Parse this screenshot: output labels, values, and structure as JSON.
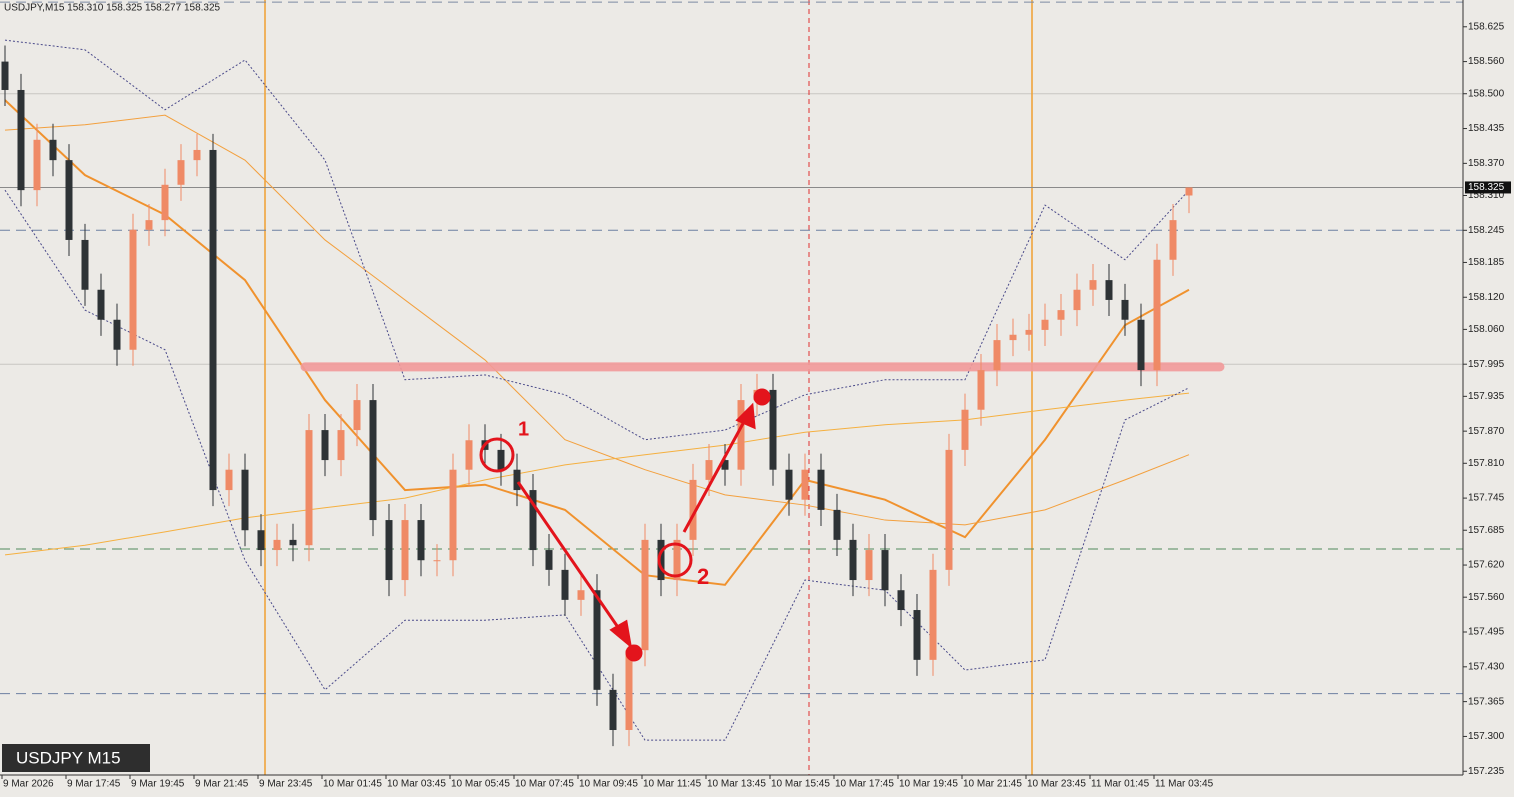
{
  "chart_data": {
    "type": "candlestick",
    "title": "USDJPY,M15  158.310 158.325 158.277 158.325",
    "symbol_label": "USDJPY M15",
    "ylim": [
      157.228,
      158.675
    ],
    "yticks": [
      158.625,
      {
        "value": 158.56,
        "label": "158.560"
      },
      {
        "value": 158.5,
        "label": "158.500"
      },
      158.435,
      {
        "value": 158.37,
        "label": "158.370"
      },
      {
        "value": 158.31,
        "label": "158.310"
      },
      158.245,
      158.185,
      {
        "value": 158.12,
        "label": "158.120"
      },
      {
        "value": 158.06,
        "label": "158.060"
      },
      157.995,
      157.935,
      {
        "value": 157.87,
        "label": "157.870"
      },
      {
        "value": 157.81,
        "label": "157.810"
      },
      157.745,
      157.685,
      {
        "value": 157.62,
        "label": "157.620"
      },
      {
        "value": 157.56,
        "label": "157.560"
      },
      157.495,
      {
        "value": 157.43,
        "label": "157.430"
      },
      157.365,
      {
        "value": 157.3,
        "label": "157.300"
      },
      157.235
    ],
    "time_labels": [
      "9 Mar 2026",
      "9 Mar 17:45",
      "9 Mar 19:45",
      "9 Mar 21:45",
      "9 Mar 23:45",
      "10 Mar 01:45",
      "10 Mar 03:45",
      "10 Mar 05:45",
      "10 Mar 07:45",
      "10 Mar 09:45",
      "10 Mar 11:45",
      "10 Mar 13:45",
      "10 Mar 15:45",
      "10 Mar 17:45",
      "10 Mar 19:45",
      "10 Mar 21:45",
      "10 Mar 23:45",
      "11 Mar 01:45",
      "11 Mar 03:45"
    ],
    "current_price": 158.325,
    "bull_color": "#ef8a66",
    "bear_color": "#2e3336",
    "open": [
      158.56,
      158.507,
      158.32,
      158.414,
      158.376,
      158.227,
      158.134,
      158.078,
      158.022,
      158.246,
      158.264,
      158.33,
      158.376,
      158.395,
      157.76,
      157.798,
      157.685,
      157.648,
      157.667,
      157.657,
      157.872,
      157.816,
      157.872,
      157.928,
      157.704,
      157.592,
      157.704,
      157.629,
      157.629,
      157.798,
      157.853,
      157.835,
      157.798,
      157.76,
      157.648,
      157.611,
      157.555,
      157.573,
      157.387,
      157.312,
      157.461,
      157.667,
      157.592,
      157.667,
      157.779,
      157.816,
      157.798,
      157.928,
      157.947,
      157.798,
      157.742,
      157.798,
      157.723,
      157.667,
      157.592,
      157.648,
      157.573,
      157.536,
      157.443,
      157.611,
      157.835,
      157.91,
      157.984,
      158.04,
      158.05,
      158.059,
      158.078,
      158.096,
      158.134,
      158.152,
      158.115,
      158.078,
      157.984,
      158.19,
      158.31
    ],
    "high": [
      158.59,
      158.537,
      158.444,
      158.444,
      158.406,
      158.257,
      158.164,
      158.108,
      158.276,
      158.294,
      158.36,
      158.406,
      158.425,
      158.425,
      157.828,
      157.828,
      157.715,
      157.697,
      157.697,
      157.902,
      157.902,
      157.902,
      157.958,
      157.958,
      157.734,
      157.734,
      157.734,
      157.659,
      157.828,
      157.883,
      157.883,
      157.865,
      157.828,
      157.79,
      157.678,
      157.641,
      157.603,
      157.603,
      157.417,
      157.491,
      157.697,
      157.697,
      157.697,
      157.809,
      157.846,
      157.846,
      157.958,
      157.977,
      157.977,
      157.828,
      157.828,
      157.828,
      157.753,
      157.697,
      157.678,
      157.678,
      157.603,
      157.566,
      157.641,
      157.865,
      157.94,
      158.014,
      158.07,
      158.08,
      158.089,
      158.108,
      158.126,
      158.164,
      158.182,
      158.182,
      158.145,
      158.108,
      158.22,
      158.294,
      158.325
    ],
    "low": [
      158.477,
      158.29,
      158.29,
      158.346,
      158.197,
      158.104,
      158.048,
      157.992,
      157.992,
      158.216,
      158.234,
      158.3,
      158.346,
      157.73,
      157.73,
      157.655,
      157.618,
      157.618,
      157.627,
      157.627,
      157.786,
      157.786,
      157.842,
      157.674,
      157.562,
      157.562,
      157.599,
      157.599,
      157.599,
      157.768,
      157.805,
      157.768,
      157.73,
      157.618,
      157.581,
      157.525,
      157.525,
      157.357,
      157.282,
      157.282,
      157.431,
      157.562,
      157.562,
      157.637,
      157.749,
      157.768,
      157.768,
      157.898,
      157.768,
      157.712,
      157.712,
      157.693,
      157.637,
      157.562,
      157.562,
      157.543,
      157.506,
      157.413,
      157.413,
      157.581,
      157.805,
      157.88,
      157.954,
      158.01,
      158.02,
      158.029,
      158.048,
      158.066,
      158.104,
      158.085,
      158.048,
      157.954,
      157.954,
      158.16,
      158.277
    ],
    "close": [
      158.507,
      158.32,
      158.414,
      158.376,
      158.227,
      158.134,
      158.078,
      158.022,
      158.246,
      158.264,
      158.33,
      158.376,
      158.395,
      157.76,
      157.798,
      157.685,
      157.648,
      157.667,
      157.657,
      157.872,
      157.816,
      157.872,
      157.928,
      157.704,
      157.592,
      157.704,
      157.629,
      157.629,
      157.798,
      157.853,
      157.835,
      157.798,
      157.76,
      157.648,
      157.611,
      157.555,
      157.573,
      157.387,
      157.312,
      157.461,
      157.667,
      157.592,
      157.667,
      157.779,
      157.816,
      157.798,
      157.928,
      157.947,
      157.798,
      157.742,
      157.798,
      157.723,
      157.667,
      157.592,
      157.648,
      157.573,
      157.536,
      157.443,
      157.611,
      157.835,
      157.91,
      157.984,
      158.04,
      158.05,
      158.059,
      158.078,
      158.096,
      158.134,
      158.152,
      158.115,
      158.078,
      157.984,
      158.19,
      158.264,
      158.325
    ],
    "indicator_index": [
      0,
      5,
      10,
      15,
      20,
      25,
      30,
      35,
      40,
      45,
      50,
      55,
      60,
      65,
      70,
      74
    ],
    "indicators": [
      {
        "color": "#f0922e",
        "width": 2,
        "dash": false,
        "values": [
          158.488,
          158.348,
          158.274,
          158.152,
          157.928,
          157.76,
          157.77,
          157.723,
          157.601,
          157.583,
          157.779,
          157.742,
          157.672,
          157.854,
          158.068,
          158.134
        ]
      },
      {
        "color": "#f3a03e",
        "width": 1,
        "dash": false,
        "values": [
          158.432,
          158.442,
          158.46,
          158.376,
          158.227,
          158.115,
          158.003,
          157.854,
          157.798,
          157.751,
          157.732,
          157.704,
          157.695,
          157.723,
          157.779,
          157.826
        ]
      },
      {
        "color": "#f5b040",
        "width": 1,
        "dash": false,
        "values": [
          157.639,
          157.657,
          157.682,
          157.708,
          157.727,
          157.745,
          157.779,
          157.807,
          157.826,
          157.844,
          157.868,
          157.882,
          157.891,
          157.91,
          157.928,
          157.941
        ]
      },
      {
        "color": "#4a4a8a",
        "width": 1,
        "dash": true,
        "values": [
          158.6,
          158.582,
          158.47,
          158.563,
          158.376,
          157.966,
          157.975,
          157.938,
          157.854,
          157.872,
          157.938,
          157.966,
          157.966,
          158.292,
          158.19,
          158.32
        ]
      },
      {
        "color": "#4a4a8a",
        "width": 1,
        "dash": true,
        "values": [
          158.32,
          158.096,
          158.022,
          157.629,
          157.387,
          157.517,
          157.517,
          157.527,
          157.293,
          157.293,
          157.592,
          157.573,
          157.424,
          157.443,
          157.891,
          157.951
        ]
      }
    ],
    "levels": [
      {
        "value": 158.671,
        "color": "#7b8aa2"
      },
      {
        "value": 158.245,
        "color": "#6d80a2"
      },
      {
        "value": 157.65,
        "color": "#4f8a5c"
      },
      {
        "value": 157.38,
        "color": "#6d80a2"
      }
    ],
    "grid_levels": [
      158.5,
      157.995
    ],
    "resistance": 157.99,
    "annotations": [
      "1",
      "2"
    ]
  }
}
